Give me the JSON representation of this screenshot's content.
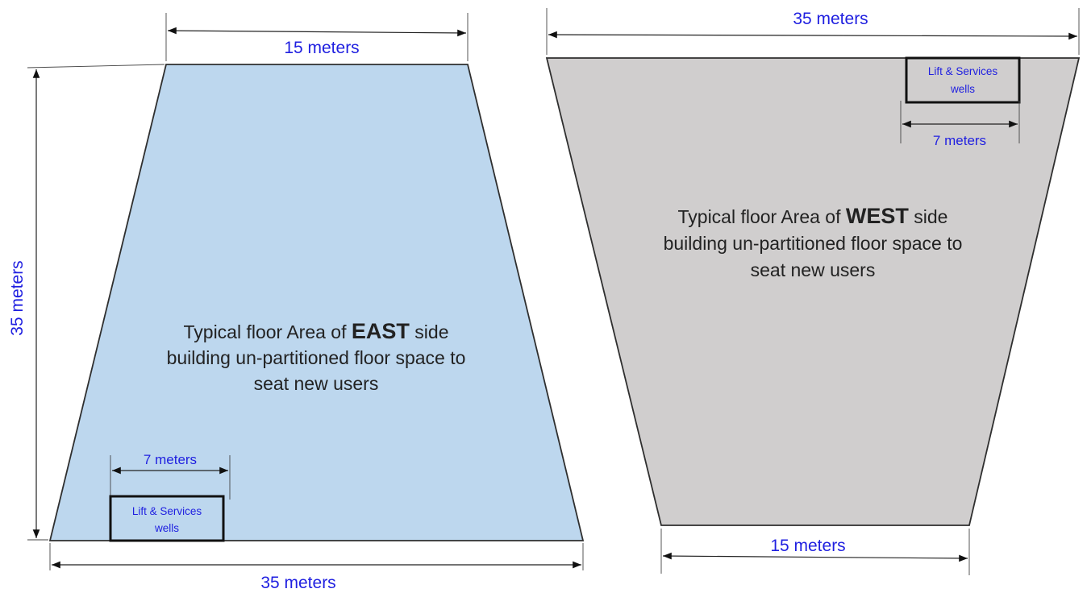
{
  "colors": {
    "east_fill": "#bdd7ee",
    "west_fill": "#d0cece",
    "dimension_text": "#1f1fe0",
    "outline": "#2f2f2f"
  },
  "east": {
    "top_width": "15 meters",
    "height": "35 meters",
    "bottom_width": "35 meters",
    "lift_width": "7 meters",
    "lift_line1": "Lift & Services",
    "lift_line2": "wells",
    "desc_line1_pre": "Typical floor Area of ",
    "desc_bold": "EAST",
    "desc_line1_post": " side",
    "desc_line2": "building un-partitioned floor space to",
    "desc_line3": "seat new users"
  },
  "west": {
    "top_width": "35 meters",
    "bottom_width": "15 meters",
    "lift_width": "7 meters",
    "lift_line1": "Lift & Services",
    "lift_line2": "wells",
    "desc_line1_pre": "Typical floor Area of ",
    "desc_bold": "WEST",
    "desc_line1_post": " side",
    "desc_line2": "building un-partitioned floor space to",
    "desc_line3": "seat new users"
  }
}
